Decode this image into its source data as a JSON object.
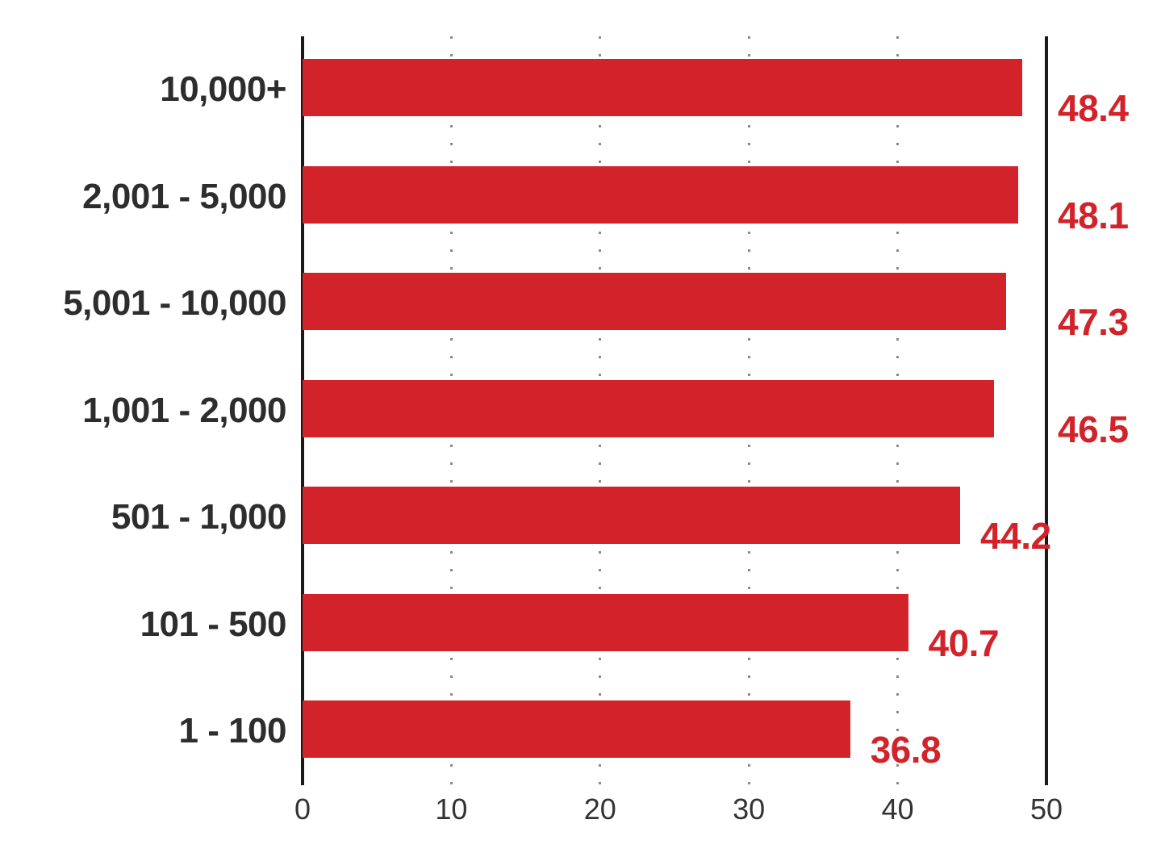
{
  "chart_data": {
    "type": "bar",
    "orientation": "horizontal",
    "title": "",
    "xlabel": "",
    "ylabel": "",
    "categories": [
      "10,000+",
      "2,001 - 5,000",
      "5,001 - 10,000",
      "1,001 - 2,000",
      "501 - 1,000",
      "101 - 500",
      "1 - 100"
    ],
    "values": [
      48.4,
      48.1,
      47.3,
      46.5,
      44.2,
      40.7,
      36.8
    ],
    "value_labels": [
      "48.4",
      "48.1",
      "47.3",
      "46.5",
      "44.2",
      "40.7",
      "36.8"
    ],
    "xlim": [
      0,
      50
    ],
    "x_ticks": [
      0,
      10,
      20,
      30,
      40,
      50
    ],
    "x_tick_labels": [
      "0",
      "10",
      "20",
      "30",
      "40",
      "50"
    ],
    "grid": "vertical-dotted-at-10-20-30-40",
    "legend": "none",
    "colors": {
      "bar": "#d2232a",
      "value_label": "#d2232a",
      "category_label": "#2d2d2d",
      "tick_label": "#333333",
      "axis_line": "#1a1a1a",
      "grid_dots": "#8a8a8a",
      "background": "#ffffff"
    }
  }
}
